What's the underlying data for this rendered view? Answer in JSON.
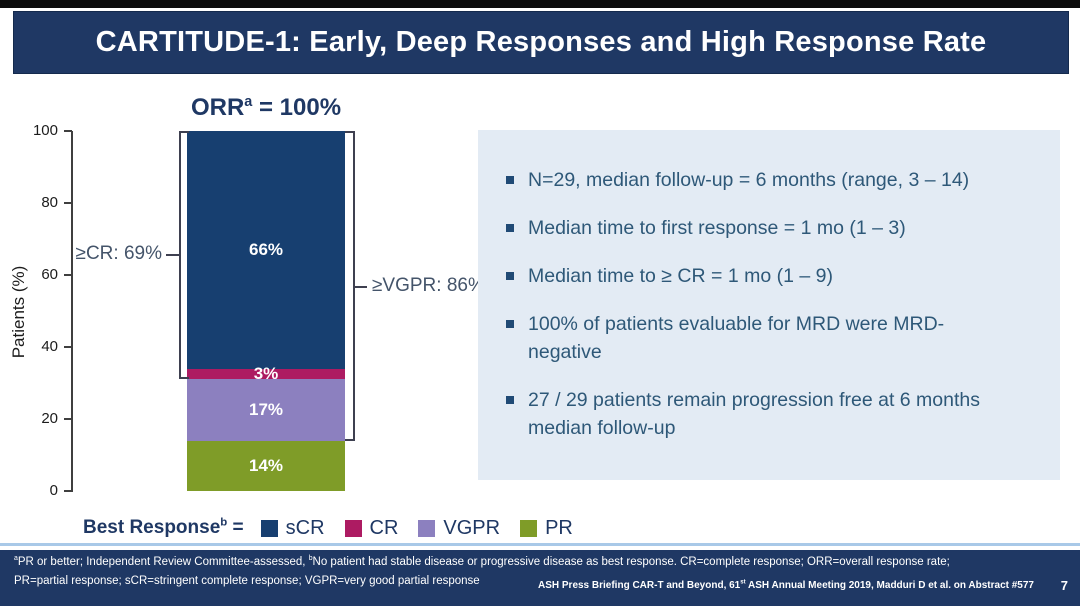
{
  "top_banner": {
    "title": "CARTITUDE-1: Early, Deep Responses and High Response Rate"
  },
  "chart_data": {
    "type": "bar",
    "title_prefix": "ORR",
    "title_sup": "a",
    "title_suffix": " = 100%",
    "title_full": "ORR(a) = 100%",
    "ylabel": "Patients (%)",
    "ylim": [
      0,
      100
    ],
    "yticks": [
      0,
      20,
      40,
      60,
      80,
      100
    ],
    "grid": false,
    "legend_position": "bottom",
    "series": [
      {
        "name": "sCR",
        "value": 66,
        "label": "66%",
        "color": "#173F70"
      },
      {
        "name": "CR",
        "value": 3,
        "label": "3%",
        "color": "#AD1B62"
      },
      {
        "name": "VGPR",
        "value": 17,
        "label": "17%",
        "color": "#8C80BF"
      },
      {
        "name": "PR",
        "value": 14,
        "label": "14%",
        "color": "#7F9C28"
      }
    ],
    "brackets": [
      {
        "label": "≥CR: 69%",
        "value": 69,
        "side": "left"
      },
      {
        "label": "≥VGPR: 86%",
        "value": 86,
        "side": "right"
      }
    ]
  },
  "legend": {
    "title_prefix": "Best Response",
    "title_sup": "b",
    "title_suffix": " ="
  },
  "bullets": [
    {
      "lines": [
        "N=29, median follow-up = 6 months (range, 3 – 14)"
      ]
    },
    {
      "lines": [
        "Median time to first response = 1 mo (1 – 3)"
      ]
    },
    {
      "lines": [
        "Median time to ≥ CR = 1 mo (1 – 9)"
      ]
    },
    {
      "lines": [
        "100% of patients evaluable for MRD were MRD-",
        "negative"
      ]
    },
    {
      "lines": [
        "27 / 29 patients remain progression free at 6 months",
        "median follow-up"
      ]
    }
  ],
  "footer": {
    "fn1_sup1": "a",
    "fn1_text1": "PR or better; Independent Review Committee-assessed, ",
    "fn1_sup2": "b",
    "fn1_text2": "No patient had stable disease or progressive disease as best response. CR=complete response; ORR=overall response rate;",
    "fn2_text": "PR=partial response; sCR=stringent complete response; VGPR=very good partial response",
    "citation_text1": "ASH Press Briefing CAR-T and Beyond, 61",
    "citation_sup": "st",
    "citation_text2": " ASH Annual Meeting 2019, Madduri D et al. on Abstract #577",
    "page_number": "7"
  },
  "colors": {
    "banner_bg": "#1F3864",
    "footer_bg": "#1F3864",
    "panel_bg": "#E3EBF4",
    "divider": "#A9C9E8",
    "bullet_text": "#2E5878",
    "bracket_label_text": "#44546A",
    "chart_title_text": "#1F3864"
  }
}
